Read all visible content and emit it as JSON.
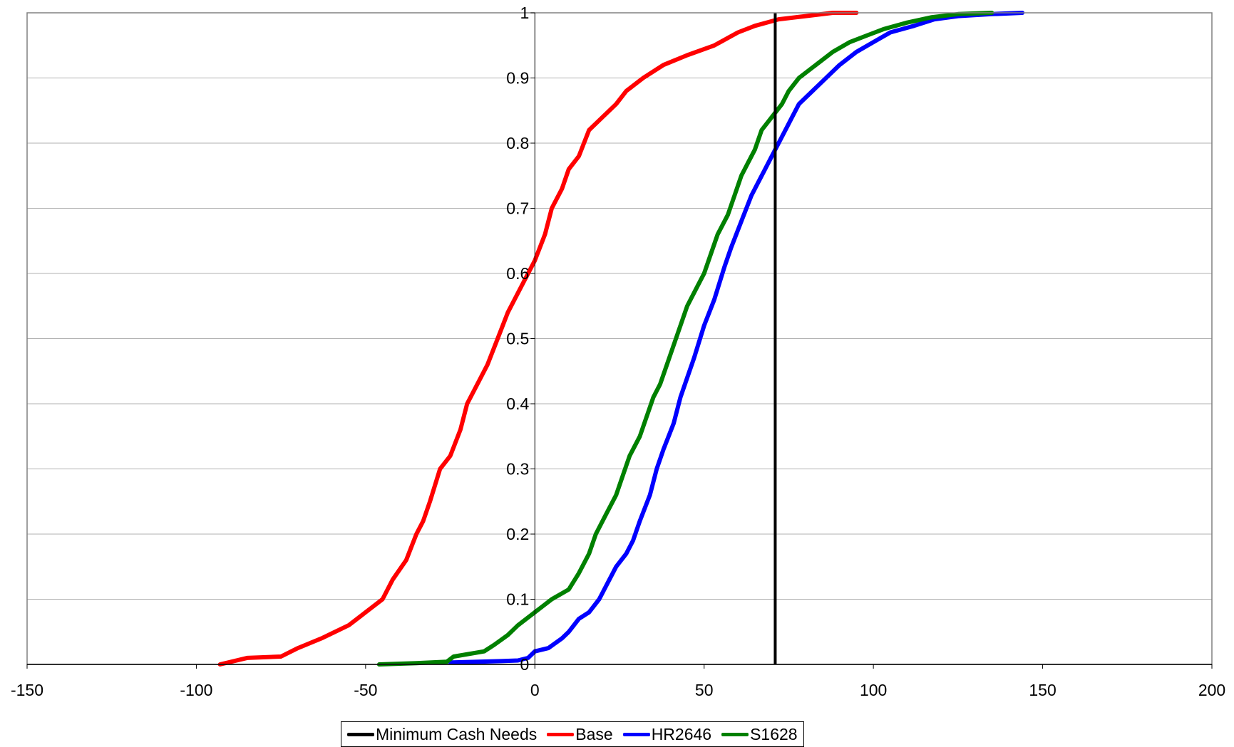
{
  "chart_data": {
    "type": "line",
    "title": "",
    "xlabel": "",
    "ylabel": "",
    "xlim": [
      -150,
      200
    ],
    "ylim": [
      0,
      1
    ],
    "x_ticks": [
      "-150",
      "-100",
      "-50",
      "0",
      "50",
      "100",
      "150",
      "200"
    ],
    "y_ticks": [
      "0",
      "0.1",
      "0.2",
      "0.3",
      "0.4",
      "0.5",
      "0.6",
      "0.7",
      "0.8",
      "0.9",
      "1"
    ],
    "grid": "horizontal",
    "legend_position": "bottom",
    "vertical_line": {
      "name": "Minimum Cash Needs",
      "x": 71,
      "color": "#000000"
    },
    "series": [
      {
        "name": "Base",
        "color": "#ff0000",
        "points": [
          [
            -93,
            0
          ],
          [
            -85,
            0.01
          ],
          [
            -75,
            0.012
          ],
          [
            -70,
            0.025
          ],
          [
            -63,
            0.04
          ],
          [
            -55,
            0.06
          ],
          [
            -50,
            0.08
          ],
          [
            -45,
            0.1
          ],
          [
            -42,
            0.13
          ],
          [
            -38,
            0.16
          ],
          [
            -35,
            0.2
          ],
          [
            -33,
            0.22
          ],
          [
            -31,
            0.25
          ],
          [
            -28,
            0.3
          ],
          [
            -25,
            0.32
          ],
          [
            -22,
            0.36
          ],
          [
            -20,
            0.4
          ],
          [
            -17,
            0.43
          ],
          [
            -14,
            0.46
          ],
          [
            -11,
            0.5
          ],
          [
            -8,
            0.54
          ],
          [
            -4,
            0.58
          ],
          [
            -2,
            0.6
          ],
          [
            0,
            0.62
          ],
          [
            3,
            0.66
          ],
          [
            5,
            0.7
          ],
          [
            8,
            0.73
          ],
          [
            10,
            0.76
          ],
          [
            13,
            0.78
          ],
          [
            16,
            0.82
          ],
          [
            20,
            0.84
          ],
          [
            24,
            0.86
          ],
          [
            27,
            0.88
          ],
          [
            32,
            0.9
          ],
          [
            38,
            0.92
          ],
          [
            45,
            0.935
          ],
          [
            53,
            0.95
          ],
          [
            60,
            0.97
          ],
          [
            65,
            0.98
          ],
          [
            72,
            0.99
          ],
          [
            80,
            0.995
          ],
          [
            88,
            1
          ],
          [
            95,
            1
          ]
        ]
      },
      {
        "name": "HR2646",
        "color": "#0000ff",
        "points": [
          [
            -25,
            0.003
          ],
          [
            -10,
            0.005
          ],
          [
            -5,
            0.006
          ],
          [
            -2,
            0.01
          ],
          [
            0,
            0.02
          ],
          [
            4,
            0.025
          ],
          [
            8,
            0.04
          ],
          [
            10,
            0.05
          ],
          [
            13,
            0.07
          ],
          [
            16,
            0.08
          ],
          [
            19,
            0.1
          ],
          [
            22,
            0.13
          ],
          [
            24,
            0.15
          ],
          [
            27,
            0.17
          ],
          [
            29,
            0.19
          ],
          [
            31,
            0.22
          ],
          [
            34,
            0.26
          ],
          [
            36,
            0.3
          ],
          [
            38,
            0.33
          ],
          [
            41,
            0.37
          ],
          [
            43,
            0.41
          ],
          [
            45,
            0.44
          ],
          [
            47,
            0.47
          ],
          [
            50,
            0.52
          ],
          [
            53,
            0.56
          ],
          [
            56,
            0.61
          ],
          [
            58,
            0.64
          ],
          [
            61,
            0.68
          ],
          [
            64,
            0.72
          ],
          [
            66,
            0.74
          ],
          [
            68,
            0.76
          ],
          [
            70,
            0.78
          ],
          [
            72,
            0.8
          ],
          [
            74,
            0.82
          ],
          [
            76,
            0.84
          ],
          [
            78,
            0.86
          ],
          [
            82,
            0.88
          ],
          [
            86,
            0.9
          ],
          [
            90,
            0.92
          ],
          [
            95,
            0.94
          ],
          [
            100,
            0.955
          ],
          [
            105,
            0.97
          ],
          [
            112,
            0.98
          ],
          [
            118,
            0.99
          ],
          [
            125,
            0.995
          ],
          [
            135,
            0.998
          ],
          [
            144,
            1
          ]
        ]
      },
      {
        "name": "S1628",
        "color": "#008000",
        "points": [
          [
            -46,
            0
          ],
          [
            -35,
            0.002
          ],
          [
            -26,
            0.004
          ],
          [
            -24,
            0.012
          ],
          [
            -15,
            0.02
          ],
          [
            -12,
            0.03
          ],
          [
            -8,
            0.045
          ],
          [
            -5,
            0.06
          ],
          [
            0,
            0.08
          ],
          [
            5,
            0.1
          ],
          [
            10,
            0.115
          ],
          [
            13,
            0.14
          ],
          [
            16,
            0.17
          ],
          [
            18,
            0.2
          ],
          [
            21,
            0.23
          ],
          [
            24,
            0.26
          ],
          [
            26,
            0.29
          ],
          [
            28,
            0.32
          ],
          [
            31,
            0.35
          ],
          [
            33,
            0.38
          ],
          [
            35,
            0.41
          ],
          [
            37,
            0.43
          ],
          [
            39,
            0.46
          ],
          [
            41,
            0.49
          ],
          [
            43,
            0.52
          ],
          [
            45,
            0.55
          ],
          [
            48,
            0.58
          ],
          [
            50,
            0.6
          ],
          [
            52,
            0.63
          ],
          [
            54,
            0.66
          ],
          [
            57,
            0.69
          ],
          [
            59,
            0.72
          ],
          [
            61,
            0.75
          ],
          [
            63,
            0.77
          ],
          [
            65,
            0.79
          ],
          [
            67,
            0.82
          ],
          [
            70,
            0.84
          ],
          [
            73,
            0.86
          ],
          [
            75,
            0.88
          ],
          [
            78,
            0.9
          ],
          [
            83,
            0.92
          ],
          [
            88,
            0.94
          ],
          [
            93,
            0.955
          ],
          [
            98,
            0.965
          ],
          [
            103,
            0.975
          ],
          [
            110,
            0.985
          ],
          [
            117,
            0.993
          ],
          [
            125,
            0.998
          ],
          [
            135,
            1
          ]
        ]
      }
    ]
  }
}
